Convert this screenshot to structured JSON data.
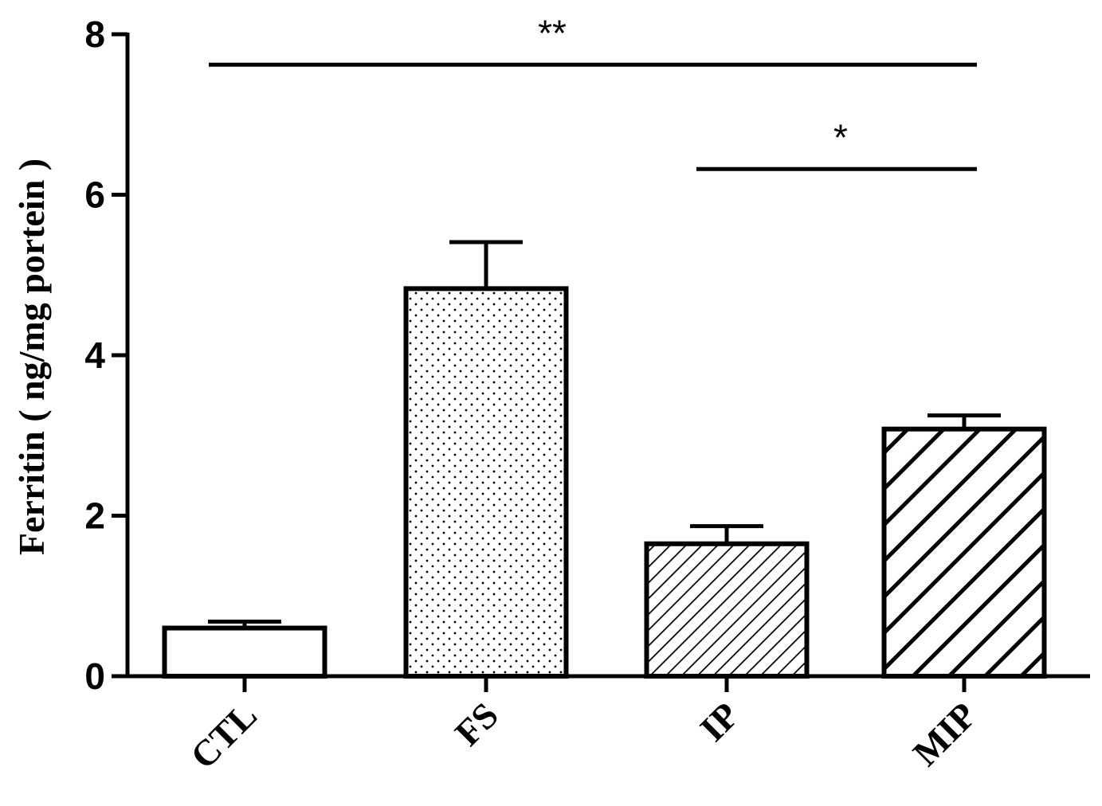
{
  "chart_data": {
    "type": "bar",
    "title": "",
    "ylabel": "Ferritin ( ng/mg portein )",
    "xlabel": "",
    "ylim": [
      0,
      8
    ],
    "yticks": [
      "0",
      "2",
      "4",
      "6",
      "8"
    ],
    "categories": [
      "CTL",
      "FS",
      "IP",
      "MIP"
    ],
    "values": [
      0.6,
      4.83,
      1.65,
      3.08
    ],
    "errors": [
      0.08,
      0.58,
      0.22,
      0.17
    ],
    "patterns": [
      "empty",
      "dots",
      "fine-hatch",
      "coarse-hatch"
    ],
    "significance": [
      {
        "label": "**",
        "from": "CTL",
        "to": "MIP",
        "y": 7.62
      },
      {
        "label": "*",
        "from": "IP",
        "to": "MIP",
        "y": 6.32
      }
    ],
    "grid": false,
    "legend": "none",
    "colors": {
      "ink": "#000000",
      "fill": "#ffffff"
    }
  }
}
